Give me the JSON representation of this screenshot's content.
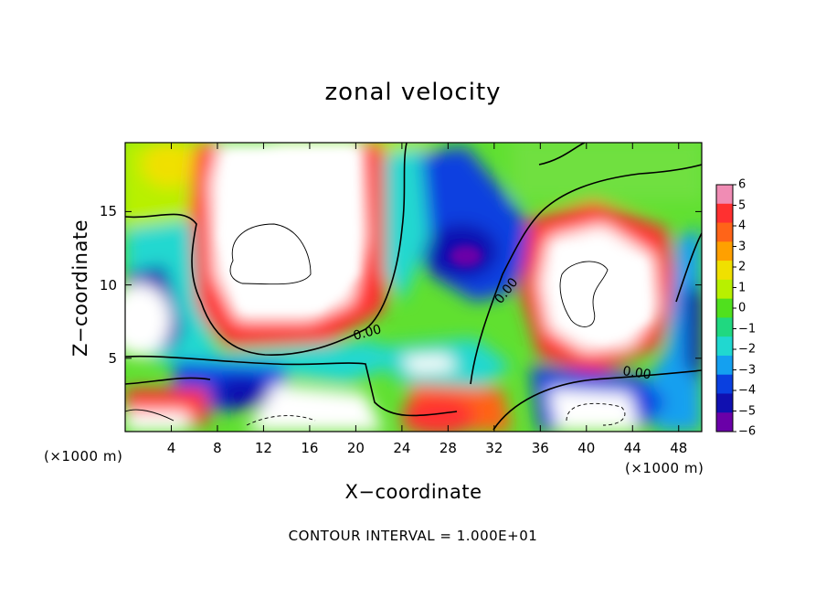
{
  "chart_data": {
    "type": "heatmap",
    "title": "zonal velocity",
    "xlabel": "X−coordinate",
    "ylabel": "Z−coordinate",
    "x_unit_left": "(×1000 m)",
    "x_unit_right": "(×1000 m)",
    "xlim": [
      0,
      50
    ],
    "ylim": [
      0,
      19.7
    ],
    "x_ticks": [
      4,
      8,
      12,
      16,
      20,
      24,
      28,
      32,
      36,
      40,
      44,
      48
    ],
    "y_ticks": [
      5,
      10,
      15
    ],
    "colorbar": {
      "levels": [
        "6",
        "5",
        "4",
        "3",
        "2",
        "1",
        "0",
        "−1",
        "−2",
        "−3",
        "−4",
        "−5",
        "−6"
      ],
      "range": [
        -6,
        6
      ],
      "colors": [
        "#f08cb4",
        "#ff3030",
        "#ff6418",
        "#ffa000",
        "#f0e000",
        "#b8f000",
        "#50e01e",
        "#20d880",
        "#20d8d0",
        "#14a0f0",
        "#0a40e0",
        "#1010b0",
        "#6a00a8"
      ]
    },
    "contour_labels": [
      "0.00",
      "0.00",
      "0.00"
    ],
    "contour_interval": "CONTOUR INTERVAL = 1.000E+01"
  }
}
